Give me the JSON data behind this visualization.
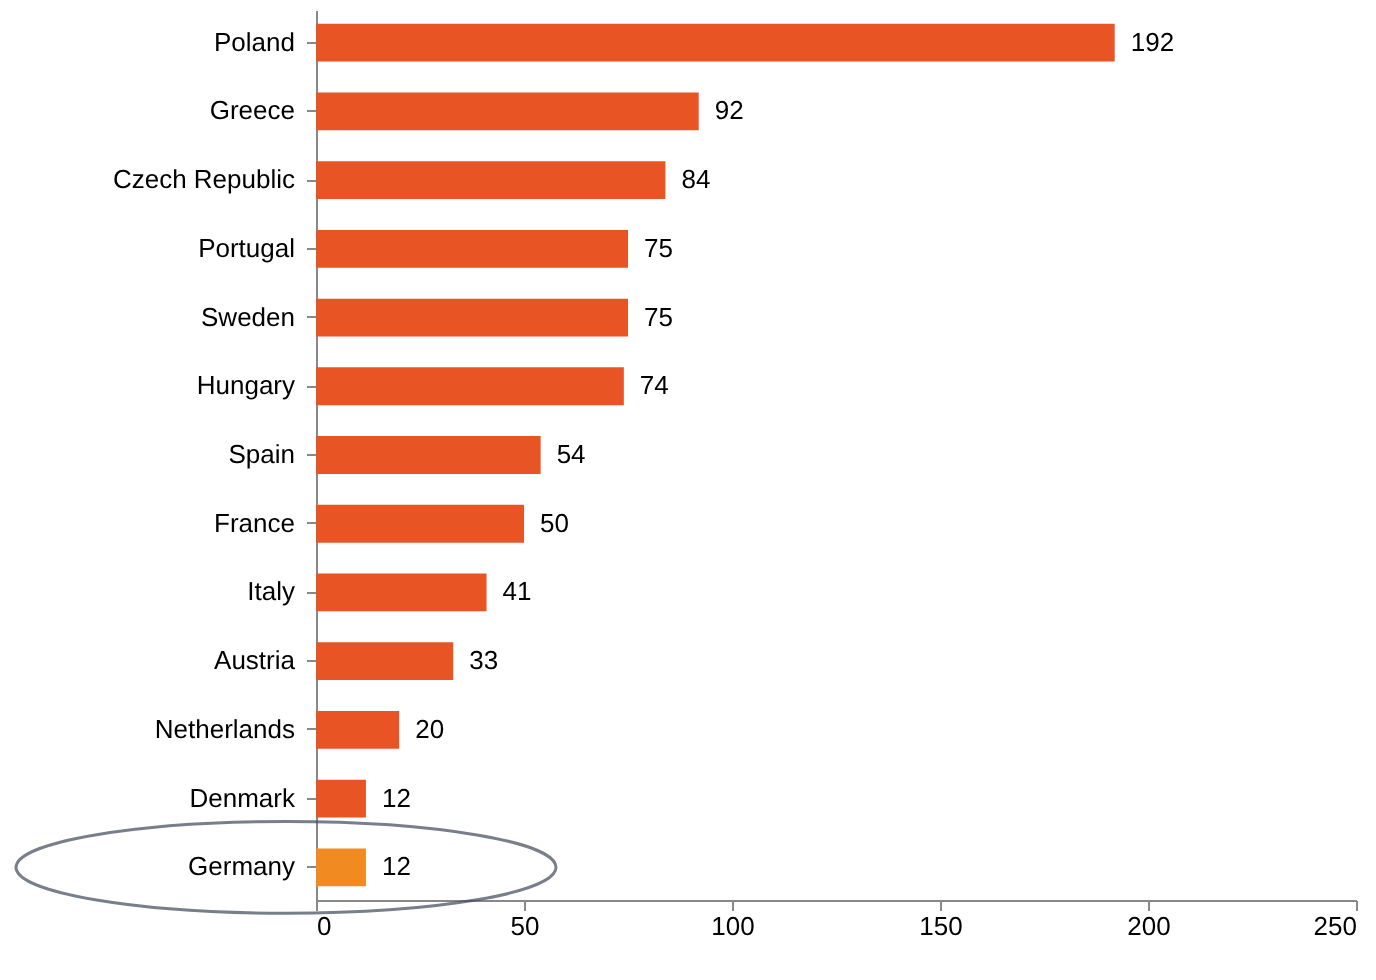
{
  "chart_data": {
    "type": "bar",
    "orientation": "horizontal",
    "categories": [
      "Poland",
      "Greece",
      "Czech Republic",
      "Portugal",
      "Sweden",
      "Hungary",
      "Spain",
      "France",
      "Italy",
      "Austria",
      "Netherlands",
      "Denmark",
      "Germany"
    ],
    "values": [
      192,
      92,
      84,
      75,
      75,
      74,
      54,
      50,
      41,
      33,
      20,
      12,
      12
    ],
    "colors": [
      "#e85424",
      "#e85424",
      "#e85424",
      "#e85424",
      "#e85424",
      "#e85424",
      "#e85424",
      "#e85424",
      "#e85424",
      "#e85424",
      "#e85424",
      "#e85424",
      "#f28a22"
    ],
    "xlim": [
      0,
      250
    ],
    "xticks": [
      0,
      50,
      100,
      150,
      200,
      250
    ],
    "data_labels": true,
    "grid": false
  }
}
